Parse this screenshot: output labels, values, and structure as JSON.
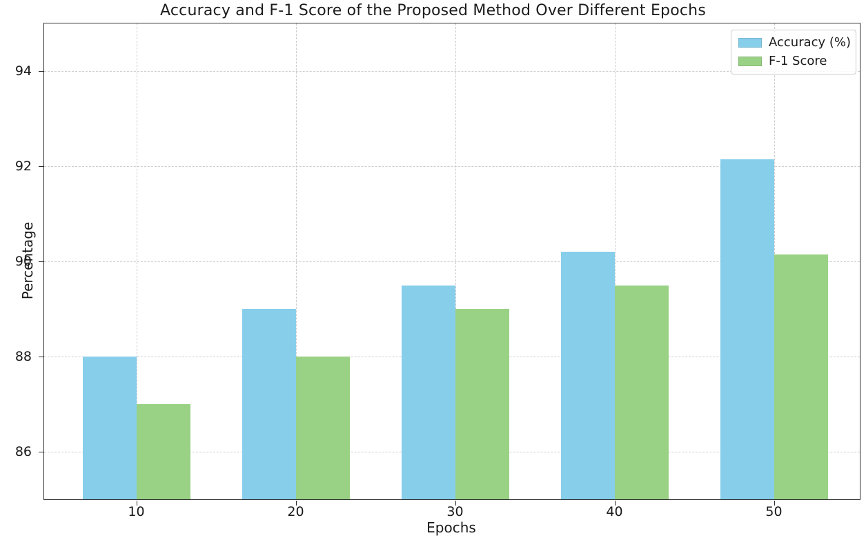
{
  "chart_data": {
    "type": "bar",
    "title": "Accuracy and F-1 Score of the Proposed Method Over Different Epochs",
    "xlabel": "Epochs",
    "ylabel": "Percentage",
    "categories": [
      "10",
      "20",
      "30",
      "40",
      "50"
    ],
    "series": [
      {
        "name": "Accuracy (%)",
        "color": "#87CEEB",
        "values": [
          88.0,
          89.0,
          89.5,
          90.2,
          92.15
        ]
      },
      {
        "name": "F-1 Score",
        "color": "#99D185",
        "values": [
          87.0,
          88.0,
          89.0,
          89.5,
          90.15
        ]
      }
    ],
    "ylim": [
      85,
      95
    ],
    "yticks": [
      86,
      88,
      90,
      92,
      94
    ],
    "grid": {
      "visible": true,
      "style": "dashed",
      "color": "#cccccc",
      "axes": "both"
    },
    "legend": {
      "position": "upper right"
    },
    "background_color": "#ffffff",
    "spine_color": "#2b2b2b"
  }
}
